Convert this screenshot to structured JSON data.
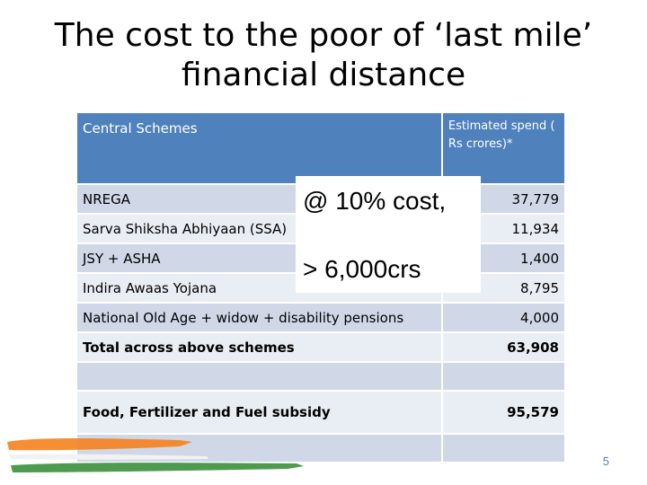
{
  "slide": {
    "title_line1": "The cost to the poor of ‘last mile’",
    "title_line2": "financial distance",
    "page_number": "5"
  },
  "table": {
    "header": {
      "scheme": "Central Schemes",
      "spend": "Estimated spend ( Rs crores)*"
    },
    "rows": [
      {
        "scheme": "NREGA",
        "spend": "37,779",
        "bold": false
      },
      {
        "scheme": "Sarva Shiksha Abhiyaan (SSA)",
        "spend": "11,934",
        "bold": false
      },
      {
        "scheme": "JSY + ASHA",
        "spend": "1,400",
        "bold": false
      },
      {
        "scheme": "Indira Awaas Yojana",
        "spend": "8,795",
        "bold": false
      },
      {
        "scheme": "National Old Age + widow + disability pensions",
        "spend": "4,000",
        "bold": false
      },
      {
        "scheme": "Total across above schemes",
        "spend": "63,908",
        "bold": true
      },
      {
        "scheme": "",
        "spend": "",
        "bold": false
      },
      {
        "scheme": "Food, Fertilizer and Fuel subsidy",
        "spend": "95,579",
        "bold": true
      },
      {
        "scheme": "",
        "spend": "",
        "bold": false
      }
    ]
  },
  "callout": {
    "line1": "@ 10% cost,",
    "line2": "> 6,000crs"
  },
  "colors": {
    "header_bg": "#4f81bd",
    "row_dark": "#d0d8e8",
    "row_light": "#e9edf4",
    "saffron": "#f58220",
    "green": "#3b8f3b"
  }
}
